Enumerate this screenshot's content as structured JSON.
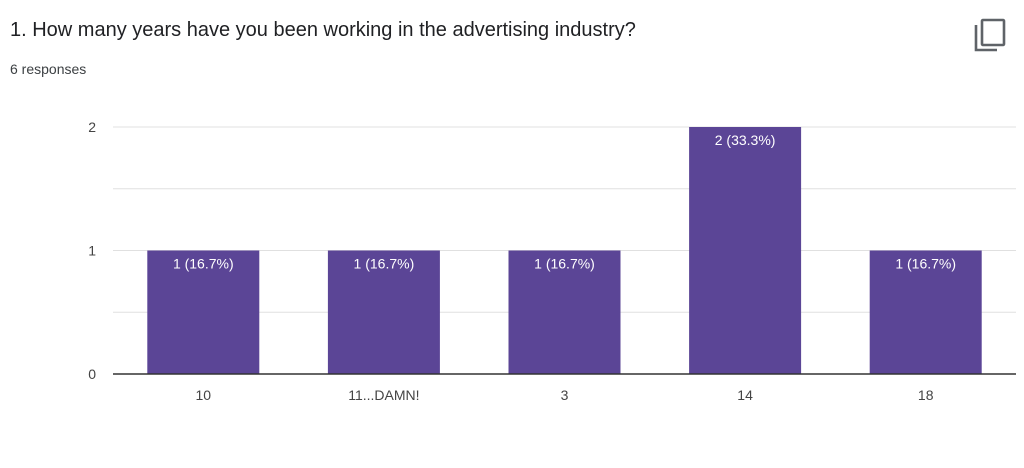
{
  "question": {
    "title": "1. How many years have you been working in the advertising industry?",
    "responses": "6 responses"
  },
  "icons": {
    "copy": "copy-icon"
  },
  "colors": {
    "bar": "#5b4596",
    "bar_label": "#ffffff",
    "gridline": "#e0e0e0",
    "baseline": "#333333",
    "tick_text": "#444444"
  },
  "chart_data": {
    "type": "bar",
    "categories": [
      "10",
      "11...DAMN!",
      "3",
      "14",
      "18"
    ],
    "values": [
      1,
      1,
      1,
      2,
      1
    ],
    "data_labels": [
      "1 (16.7%)",
      "1 (16.7%)",
      "1 (16.7%)",
      "2 (33.3%)",
      "1 (16.7%)"
    ],
    "yticks": [
      "0",
      "1",
      "2"
    ],
    "ylim": [
      0,
      2
    ],
    "grid": true,
    "legend": "none"
  }
}
